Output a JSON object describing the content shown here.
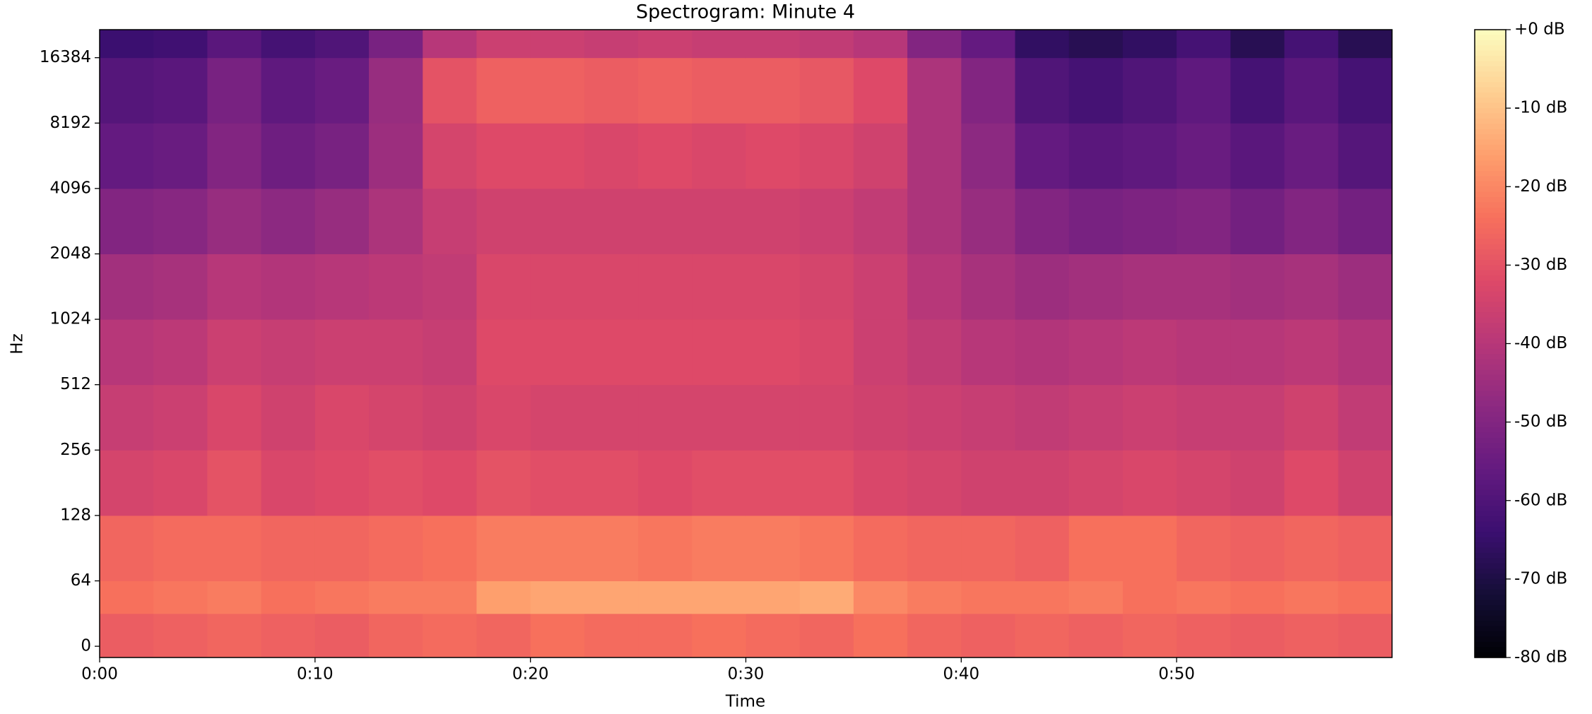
{
  "chart_data": {
    "type": "heatmap",
    "title": "Spectrogram: Minute 4",
    "x_label": "Time",
    "y_label": "Hz",
    "y_scale": "symlog",
    "colormap": "magma",
    "xlim": [
      0,
      60
    ],
    "ylim": [
      -11,
      22050
    ],
    "xticks": [
      {
        "value": 0,
        "label": "0:00"
      },
      {
        "value": 10,
        "label": "0:10"
      },
      {
        "value": 20,
        "label": "0:20"
      },
      {
        "value": 30,
        "label": "0:30"
      },
      {
        "value": 40,
        "label": "0:40"
      },
      {
        "value": 50,
        "label": "0:50"
      }
    ],
    "yticks": [
      0,
      64,
      128,
      256,
      512,
      1024,
      2048,
      4096,
      8192,
      16384
    ],
    "clim": [
      -80,
      0
    ],
    "cticks": [
      {
        "value": 0,
        "label": "+0 dB"
      },
      {
        "value": -10,
        "label": "-10 dB"
      },
      {
        "value": -20,
        "label": "-20 dB"
      },
      {
        "value": -30,
        "label": "-30 dB"
      },
      {
        "value": -40,
        "label": "-40 dB"
      },
      {
        "value": -50,
        "label": "-50 dB"
      },
      {
        "value": -60,
        "label": "-60 dB"
      },
      {
        "value": -70,
        "label": "-70 dB"
      },
      {
        "value": -80,
        "label": "-80 dB"
      }
    ],
    "x_bins": [
      0,
      2.5,
      5,
      7.5,
      10,
      12.5,
      15,
      17.5,
      20,
      22.5,
      25,
      27.5,
      30,
      32.5,
      35,
      37.5,
      40,
      42.5,
      45,
      47.5,
      50,
      52.5,
      55,
      57.5,
      60
    ],
    "y_bins": [
      -11,
      32,
      64,
      128,
      256,
      512,
      1024,
      2048,
      4096,
      8192,
      16384,
      22050
    ],
    "values": [
      [
        -28,
        -27,
        -26,
        -27,
        -28,
        -26,
        -25,
        -26,
        -24,
        -25,
        -25,
        -24,
        -25,
        -26,
        -24,
        -26,
        -27,
        -26,
        -27,
        -26,
        -27,
        -28,
        -27,
        -28
      ],
      [
        -24,
        -23,
        -22,
        -24,
        -23,
        -22,
        -22,
        -16,
        -15,
        -15,
        -15,
        -15,
        -15,
        -14,
        -20,
        -22,
        -23,
        -23,
        -22,
        -24,
        -23,
        -24,
        -23,
        -24
      ],
      [
        -26,
        -25,
        -25,
        -26,
        -26,
        -25,
        -24,
        -22,
        -22,
        -22,
        -23,
        -22,
        -22,
        -23,
        -25,
        -26,
        -26,
        -27,
        -24,
        -24,
        -26,
        -27,
        -26,
        -27
      ],
      [
        -34,
        -33,
        -30,
        -33,
        -32,
        -31,
        -32,
        -30,
        -31,
        -31,
        -32,
        -31,
        -31,
        -31,
        -33,
        -34,
        -35,
        -35,
        -34,
        -33,
        -34,
        -35,
        -32,
        -35
      ],
      [
        -37,
        -36,
        -33,
        -35,
        -33,
        -34,
        -35,
        -33,
        -34,
        -34,
        -34,
        -34,
        -34,
        -34,
        -35,
        -36,
        -37,
        -38,
        -37,
        -36,
        -37,
        -37,
        -35,
        -38
      ],
      [
        -40,
        -39,
        -36,
        -37,
        -36,
        -36,
        -37,
        -32,
        -32,
        -32,
        -32,
        -32,
        -32,
        -33,
        -36,
        -38,
        -40,
        -41,
        -40,
        -39,
        -40,
        -40,
        -39,
        -41
      ],
      [
        -44,
        -43,
        -40,
        -41,
        -40,
        -39,
        -38,
        -33,
        -33,
        -33,
        -33,
        -33,
        -33,
        -34,
        -36,
        -40,
        -43,
        -45,
        -44,
        -43,
        -43,
        -44,
        -43,
        -45
      ],
      [
        -50,
        -49,
        -46,
        -48,
        -46,
        -42,
        -37,
        -35,
        -35,
        -35,
        -35,
        -35,
        -35,
        -36,
        -38,
        -42,
        -46,
        -50,
        -52,
        -51,
        -50,
        -53,
        -50,
        -53
      ],
      [
        -56,
        -55,
        -50,
        -54,
        -52,
        -45,
        -34,
        -32,
        -32,
        -33,
        -32,
        -33,
        -32,
        -33,
        -35,
        -42,
        -48,
        -56,
        -58,
        -57,
        -55,
        -58,
        -55,
        -59
      ],
      [
        -59,
        -58,
        -52,
        -57,
        -55,
        -46,
        -30,
        -27,
        -27,
        -28,
        -27,
        -28,
        -28,
        -29,
        -32,
        -42,
        -50,
        -60,
        -62,
        -60,
        -57,
        -62,
        -58,
        -62
      ],
      [
        -64,
        -63,
        -58,
        -62,
        -60,
        -52,
        -40,
        -36,
        -36,
        -37,
        -36,
        -37,
        -37,
        -38,
        -40,
        -50,
        -56,
        -66,
        -68,
        -66,
        -62,
        -68,
        -62,
        -68
      ]
    ]
  }
}
